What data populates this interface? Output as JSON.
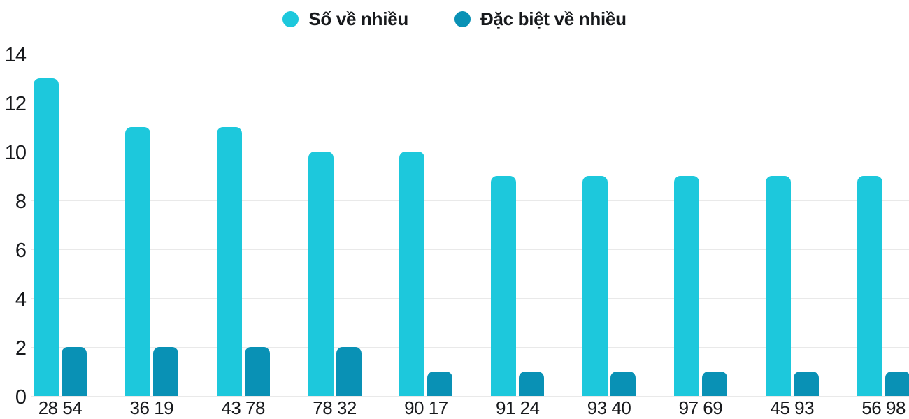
{
  "chart_data": {
    "type": "bar",
    "title": "",
    "categories": [
      "28 54",
      "36 19",
      "43 78",
      "78 32",
      "90 17",
      "91 24",
      "93 40",
      "97 69",
      "45 93",
      "56 98"
    ],
    "series": [
      {
        "name": "Số về nhiều",
        "color": "#1DC8DC",
        "values": [
          13,
          11,
          11,
          10,
          10,
          9,
          9,
          9,
          9,
          9
        ]
      },
      {
        "name": "Đặc biệt về nhiều",
        "color": "#0991B5",
        "values": [
          2,
          2,
          2,
          2,
          1,
          1,
          1,
          1,
          1,
          1
        ]
      }
    ],
    "yticks": [
      0,
      2,
      4,
      6,
      8,
      10,
      12,
      14
    ],
    "ylim": [
      0,
      14
    ],
    "xlabel": "",
    "ylabel": "",
    "grid": true,
    "legend_position": "top",
    "background_color": "#ffffff",
    "gridline_color": "#e9e9e9",
    "text_color": "#17191c"
  }
}
